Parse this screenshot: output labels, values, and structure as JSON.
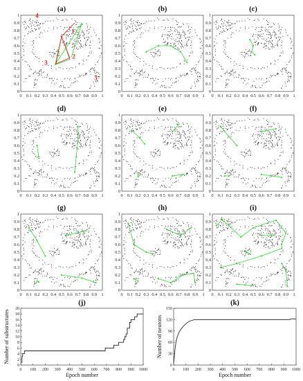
{
  "panels": [
    {
      "label": "(a)",
      "markers": [
        "1",
        "2",
        "3",
        "4",
        "5"
      ]
    },
    {
      "label": "(b)"
    },
    {
      "label": "(c)"
    },
    {
      "label": "(d)"
    },
    {
      "label": "(e)"
    },
    {
      "label": "(f)"
    },
    {
      "label": "(g)"
    },
    {
      "label": "(h)"
    },
    {
      "label": "(i)"
    }
  ],
  "scatter_ticks": [
    "0",
    "0.1",
    "0.2",
    "0.3",
    "0.4",
    "0.5",
    "0.6",
    "0.7",
    "0.8",
    "0.9",
    "1"
  ],
  "colors": {
    "points": "#222222",
    "network": "#3ad23a",
    "markers": "#e0261e"
  },
  "chart_data": [
    {
      "type": "line",
      "panel": "(j)",
      "title": "(j)",
      "xlabel": "Epoch number",
      "ylabel": "Number of substructures",
      "xlim": [
        0,
        1000
      ],
      "ylim": [
        0,
        20
      ],
      "xticks": [
        0,
        100,
        200,
        300,
        400,
        500,
        600,
        700,
        800,
        900,
        1000
      ],
      "yticks": [
        0,
        2,
        4,
        6,
        8,
        10,
        12,
        14,
        16,
        18,
        20
      ],
      "x": [
        0,
        10,
        10,
        15,
        15,
        30,
        30,
        690,
        690,
        760,
        760,
        800,
        800,
        840,
        840,
        850,
        850,
        860,
        860,
        870,
        870,
        880,
        880,
        890,
        890,
        900,
        900,
        910,
        910,
        920,
        920,
        930,
        930,
        950,
        950,
        960,
        960,
        1000
      ],
      "y": [
        1,
        1,
        3,
        3,
        4,
        4,
        5,
        5,
        6,
        6,
        7,
        7,
        8,
        8,
        9,
        9,
        10,
        10,
        11,
        11,
        13,
        13,
        13,
        13,
        15,
        15,
        16,
        16,
        16,
        16,
        16,
        16,
        17,
        17,
        18,
        18,
        18,
        18
      ]
    },
    {
      "type": "line",
      "panel": "(k)",
      "title": "(k)",
      "xlabel": "Epoch number",
      "ylabel": "Number of neurons",
      "xlim": [
        0,
        1000
      ],
      "ylim": [
        0,
        150
      ],
      "xticks": [
        0,
        100,
        200,
        300,
        400,
        500,
        600,
        700,
        800,
        900,
        1000
      ],
      "yticks": [
        0,
        30,
        60,
        90,
        120,
        150
      ],
      "x": [
        0,
        5,
        10,
        20,
        30,
        40,
        50,
        60,
        70,
        80,
        90,
        100,
        110,
        120,
        130,
        140,
        150,
        160,
        170,
        950,
        955,
        1000
      ],
      "y": [
        5,
        20,
        40,
        62,
        75,
        84,
        90,
        95,
        99,
        103,
        106,
        109,
        112,
        114,
        116,
        117,
        118,
        119,
        120,
        120,
        122,
        122
      ]
    }
  ]
}
